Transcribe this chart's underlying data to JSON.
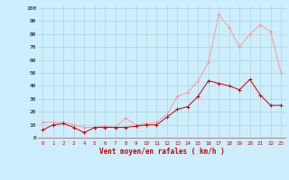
{
  "x": [
    0,
    1,
    2,
    3,
    4,
    5,
    6,
    7,
    8,
    9,
    10,
    11,
    12,
    13,
    14,
    15,
    16,
    17,
    18,
    19,
    20,
    21,
    22,
    23
  ],
  "wind_avg": [
    6,
    10,
    11,
    8,
    4,
    8,
    8,
    8,
    8,
    9,
    10,
    10,
    16,
    22,
    24,
    32,
    44,
    42,
    40,
    37,
    45,
    33,
    25,
    25
  ],
  "wind_gust": [
    12,
    12,
    12,
    10,
    8,
    8,
    9,
    8,
    15,
    10,
    11,
    12,
    18,
    32,
    35,
    44,
    58,
    95,
    85,
    70,
    80,
    87,
    82,
    50
  ],
  "bg_color": "#cceeff",
  "grid_color": "#aacccc",
  "avg_color": "#cc0000",
  "gust_color": "#ff9999",
  "xlabel": "Vent moyen/en rafales ( km/h )",
  "xlabel_color": "#cc0000",
  "ylabel_ticks": [
    0,
    10,
    20,
    30,
    40,
    50,
    60,
    70,
    80,
    90,
    100
  ],
  "xlim": [
    -0.5,
    23.5
  ],
  "ylim": [
    -2,
    102
  ]
}
